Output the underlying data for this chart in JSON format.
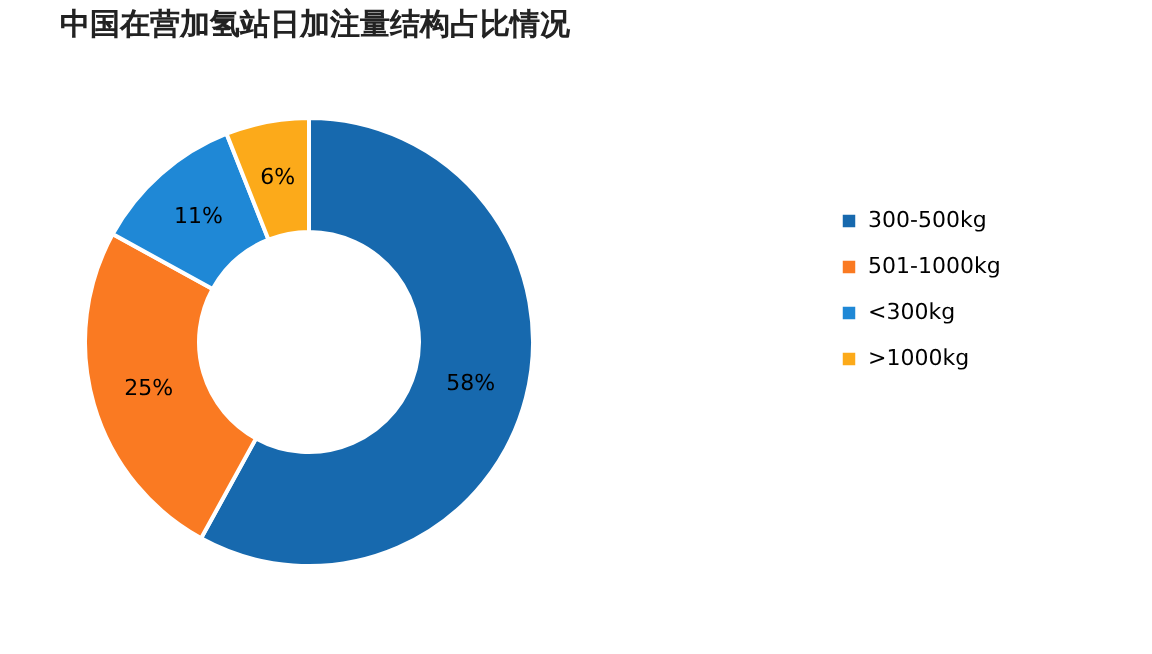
{
  "chart_data": {
    "type": "donut",
    "title": "中国在营加氢站日加注量结构占比情况",
    "categories": [
      "300-500kg",
      "501-1000kg",
      "<300kg",
      ">1000kg"
    ],
    "values": [
      58,
      25,
      11,
      6
    ],
    "colors": [
      "#1769ae",
      "#fa7a22",
      "#1f88d6",
      "#fcaa1a"
    ],
    "value_labels": [
      "58%",
      "25%",
      "11%",
      "6%"
    ],
    "legend": "right"
  }
}
